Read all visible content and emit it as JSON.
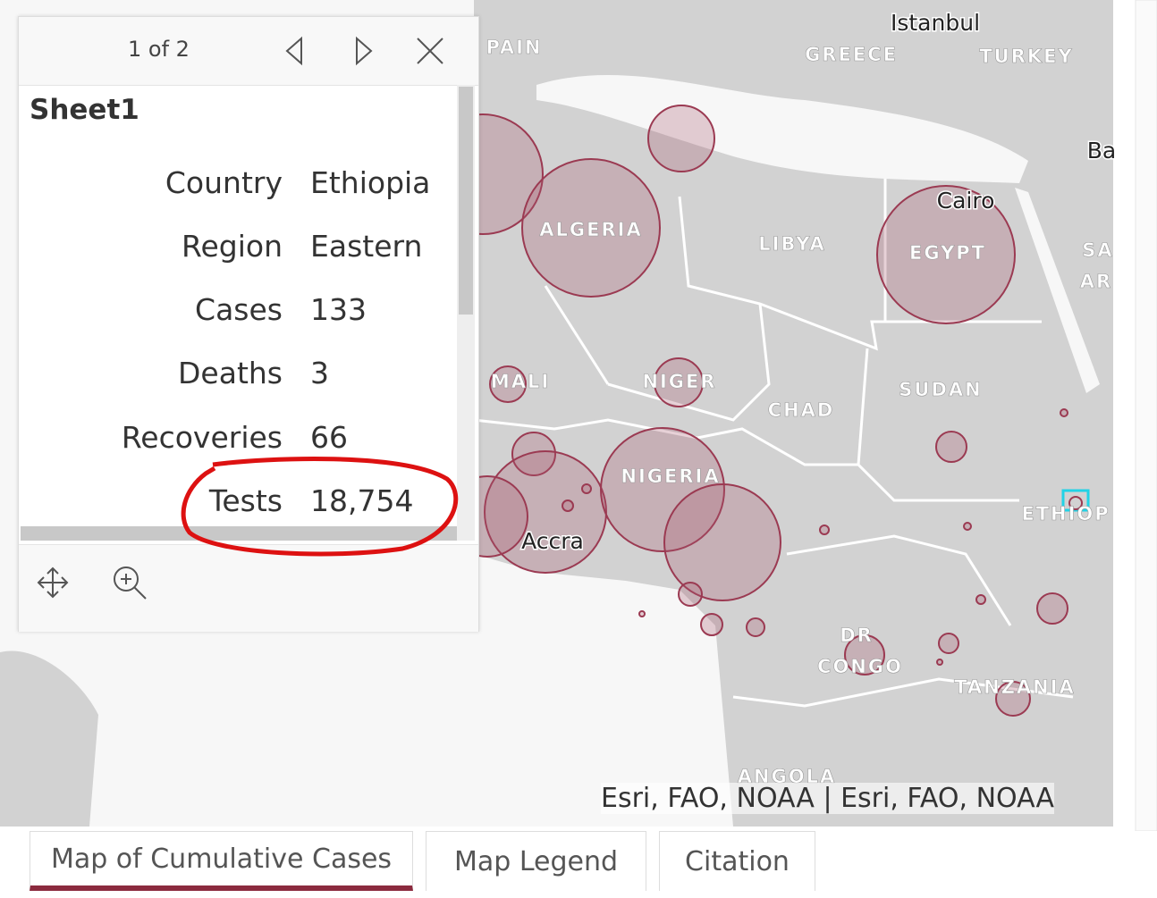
{
  "popup": {
    "pager": "1 of 2",
    "title": "Sheet1",
    "fields": [
      {
        "label": "Country",
        "value": "Ethiopia"
      },
      {
        "label": "Region",
        "value": "Eastern"
      },
      {
        "label": "Cases",
        "value": "133"
      },
      {
        "label": "Deaths",
        "value": "3"
      },
      {
        "label": "Recoveries",
        "value": "66"
      },
      {
        "label": "Tests",
        "value": "18,754"
      }
    ]
  },
  "map": {
    "cities": [
      "Istanbul",
      "Cairo",
      "Accra"
    ],
    "countries": [
      "PAIN",
      "GREECE",
      "TURKEY",
      "ALGERIA",
      "LIBYA",
      "EGYPT",
      "MALI",
      "NIGER",
      "CHAD",
      "SUDAN",
      "NIGERIA",
      "ETHIOP",
      "DR",
      "CONGO",
      "TANZANIA",
      "ANGOLA",
      "SA",
      "AR",
      "Ba"
    ],
    "attribution": "Esri, FAO, NOAA | Esri, FAO, NOAA"
  },
  "tabs": [
    "Map of Cumulative Cases",
    "Map Legend",
    "Citation"
  ]
}
